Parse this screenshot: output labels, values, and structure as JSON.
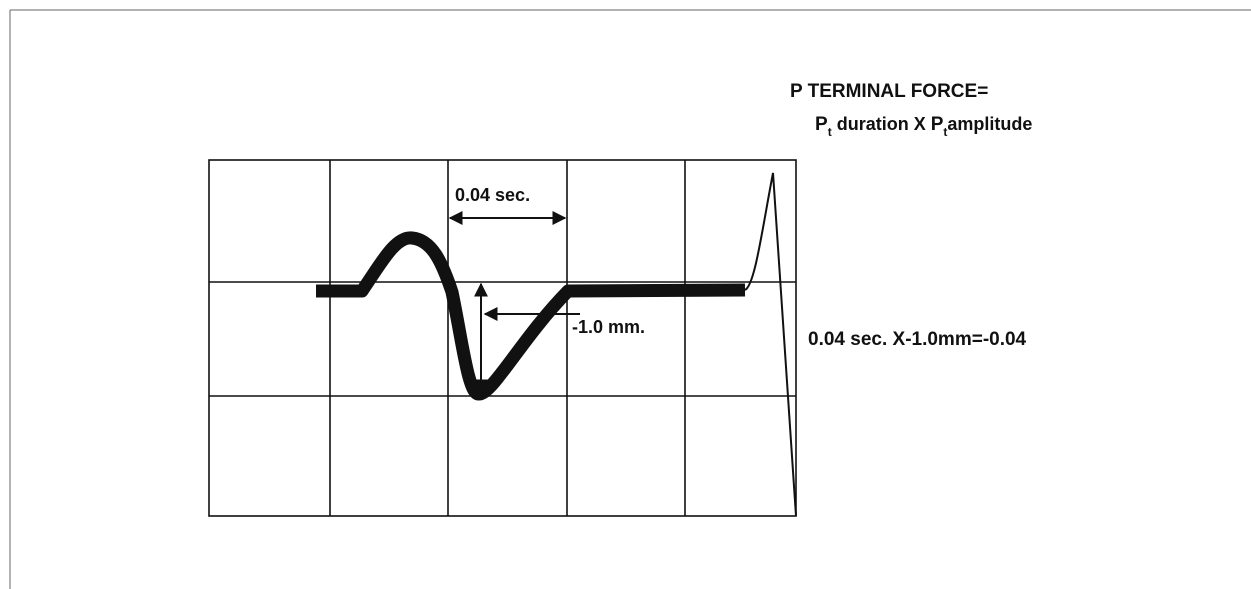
{
  "annotation": {
    "title": "P TERMINAL FORCE=",
    "formula": [
      "P",
      "t",
      " duration X ",
      "P",
      "t",
      "amplitude"
    ]
  },
  "labels": {
    "duration": "0.04 sec.",
    "amplitude": "-1.0 mm."
  },
  "calculation": "0.04 sec. X-1.0mm=-0.04"
}
